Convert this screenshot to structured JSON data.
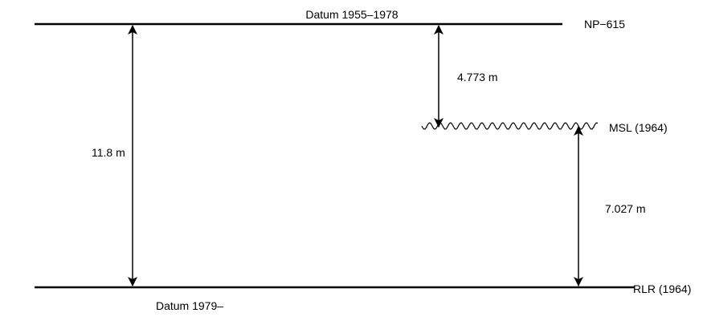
{
  "datums": {
    "upper_label": "Datum 1955–1978",
    "lower_label": "Datum 1979–"
  },
  "levels": {
    "np_label": "NP−615",
    "msl_label": "MSL (1964)",
    "rlr_label": "RLR (1964)"
  },
  "measurements": {
    "total": "11.8 m",
    "np_to_msl": "4.773 m",
    "msl_to_rlr": "7.027 m"
  },
  "colors": {
    "line": "#000000",
    "background": "#ffffff"
  }
}
